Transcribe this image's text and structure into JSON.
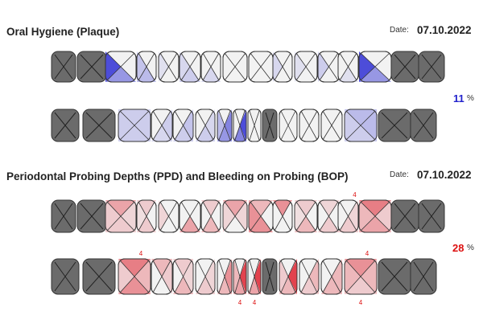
{
  "plaque": {
    "title": "Oral Hygiene (Plaque)",
    "date_label": "Date:",
    "date": "07.10.2022",
    "percent": "11",
    "percent_sign": "%",
    "color": "#3b3bd6",
    "upper": [
      {
        "missing": true
      },
      {
        "missing": true
      },
      {
        "fill": [
          0,
          0,
          0.5,
          0.9,
          0.4
        ]
      },
      {
        "fill": [
          0,
          0,
          0.3,
          0.25,
          0
        ]
      },
      {
        "fill": [
          0,
          0,
          0,
          0.1,
          0
        ]
      },
      {
        "fill": [
          0,
          0,
          0.2,
          0.15,
          0
        ]
      },
      {
        "fill": [
          0,
          0,
          0.15,
          0,
          0
        ]
      },
      {
        "fill": [
          0,
          0,
          0,
          0,
          0
        ]
      },
      {
        "fill": [
          0,
          0,
          0,
          0,
          0
        ]
      },
      {
        "fill": [
          0,
          0,
          0,
          0.15,
          0
        ]
      },
      {
        "fill": [
          0,
          0,
          0,
          0.1,
          0
        ]
      },
      {
        "fill": [
          0,
          0,
          0,
          0.2,
          0.3
        ]
      },
      {
        "fill": [
          0,
          0,
          0.1,
          0,
          0
        ]
      },
      {
        "fill": [
          0,
          0,
          0.5,
          0.9,
          0.3
        ]
      },
      {
        "missing": true
      },
      {
        "missing": true
      }
    ],
    "lower": [
      {
        "missing": true
      },
      {
        "missing": true
      },
      {
        "fill": [
          0.2,
          0.2,
          0.2,
          0.2,
          0
        ]
      },
      {
        "fill": [
          0,
          0.2,
          0.15,
          0,
          0
        ]
      },
      {
        "fill": [
          0,
          0.25,
          0.2,
          0,
          0
        ]
      },
      {
        "fill": [
          0,
          0.15,
          0.2,
          0,
          0
        ]
      },
      {
        "fill": [
          0,
          0.6,
          0.5,
          0.3,
          0
        ]
      },
      {
        "fill": [
          0,
          0.9,
          0.6,
          0,
          0
        ]
      },
      {
        "fill": [
          0,
          0,
          0,
          0,
          0
        ]
      },
      {
        "missing": true
      },
      {
        "fill": [
          0,
          0,
          0,
          0,
          0
        ]
      },
      {
        "fill": [
          0,
          0,
          0,
          0,
          0
        ]
      },
      {
        "fill": [
          0,
          0,
          0,
          0,
          0
        ]
      },
      {
        "fill": [
          0.3,
          0.3,
          0.2,
          0.2,
          0
        ]
      },
      {
        "missing": true
      },
      {
        "missing": true
      }
    ]
  },
  "ppd": {
    "title": "Periodontal Probing Depths (PPD) and Bleeding on Probing (BOP)",
    "date_label": "Date:",
    "date": "07.10.2022",
    "percent": "28",
    "percent_sign": "%",
    "color": "#e0303c",
    "upper": [
      {
        "missing": true
      },
      {
        "missing": true
      },
      {
        "fill": [
          0.4,
          0.15,
          0.2,
          0.2,
          0
        ]
      },
      {
        "fill": [
          0.2,
          0,
          0.2,
          0.1,
          0
        ]
      },
      {
        "fill": [
          0,
          0,
          0,
          0.15,
          0
        ]
      },
      {
        "fill": [
          0,
          0,
          0.4,
          0,
          0
        ]
      },
      {
        "fill": [
          0.2,
          0,
          0.3,
          0,
          0
        ]
      },
      {
        "fill": [
          0.4,
          0.15,
          0,
          0.15,
          0
        ]
      },
      {
        "fill": [
          0.3,
          0,
          0.5,
          0.5,
          0
        ]
      },
      {
        "fill": [
          0.5,
          0,
          0,
          0,
          0
        ]
      },
      {
        "fill": [
          0.2,
          0,
          0.3,
          0.1,
          0
        ]
      },
      {
        "fill": [
          0.15,
          0,
          0.2,
          0,
          0
        ]
      },
      {
        "fill": [
          0,
          0.15,
          0.2,
          0,
          0
        ],
        "depth_top": "4"
      },
      {
        "fill": [
          0.6,
          0.2,
          0.4,
          0.3,
          0
        ]
      },
      {
        "missing": true
      },
      {
        "missing": true
      }
    ],
    "lower": [
      {
        "missing": true
      },
      {
        "missing": true
      },
      {
        "fill": [
          0.6,
          0.3,
          0.5,
          0.2,
          0
        ],
        "depth_top": "4"
      },
      {
        "fill": [
          0.3,
          0.2,
          0,
          0,
          0
        ]
      },
      {
        "fill": [
          0.2,
          0.15,
          0.3,
          0,
          0
        ]
      },
      {
        "fill": [
          0,
          0.15,
          0.2,
          0,
          0
        ]
      },
      {
        "fill": [
          0,
          0.5,
          0.3,
          0,
          0
        ]
      },
      {
        "fill": [
          0,
          0.9,
          0.4,
          0.3,
          0
        ],
        "depth_bottom": "4"
      },
      {
        "fill": [
          0,
          0.9,
          0.4,
          0,
          0
        ],
        "depth_bottom": "4"
      },
      {
        "missing": true
      },
      {
        "fill": [
          0,
          0.9,
          0.3,
          0.2,
          0
        ]
      },
      {
        "fill": [
          0,
          0.3,
          0.2,
          0,
          0
        ]
      },
      {
        "fill": [
          0,
          0.3,
          0.3,
          0,
          0
        ]
      },
      {
        "fill": [
          0.5,
          0.3,
          0.2,
          0.3,
          0
        ],
        "depth_top": "4",
        "depth_bottom": "4"
      },
      {
        "missing": true
      },
      {
        "missing": true
      }
    ]
  }
}
